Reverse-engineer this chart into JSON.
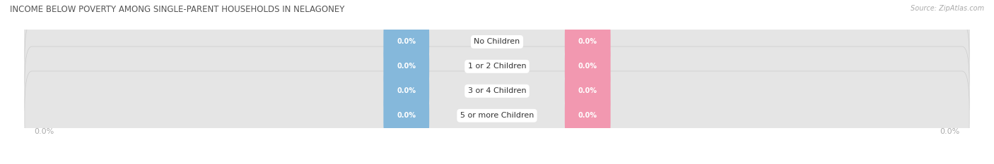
{
  "title": "INCOME BELOW POVERTY AMONG SINGLE-PARENT HOUSEHOLDS IN NELAGONEY",
  "source": "Source: ZipAtlas.com",
  "categories": [
    "No Children",
    "1 or 2 Children",
    "3 or 4 Children",
    "5 or more Children"
  ],
  "father_values": [
    0.0,
    0.0,
    0.0,
    0.0
  ],
  "mother_values": [
    0.0,
    0.0,
    0.0,
    0.0
  ],
  "father_color": "#85b8db",
  "mother_color": "#f298b0",
  "bar_bg_color": "#e5e5e5",
  "bar_bg_edge_color": "#cccccc",
  "label_color": "#ffffff",
  "category_label_color": "#333333",
  "title_color": "#555555",
  "background_color": "#ffffff",
  "axis_label_color": "#aaaaaa",
  "source_color": "#aaaaaa",
  "figsize": [
    14.06,
    2.33
  ],
  "dpi": 100
}
